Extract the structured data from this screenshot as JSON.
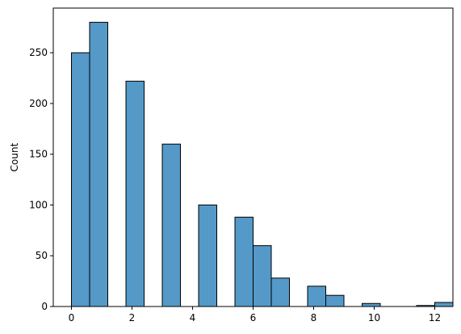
{
  "chart_data": {
    "type": "bar",
    "xlabel": "",
    "ylabel": "Count",
    "xlim": [
      -0.6,
      12.6
    ],
    "ylim": [
      0,
      294
    ],
    "xticks": [
      0,
      2,
      4,
      6,
      8,
      10,
      12
    ],
    "yticks": [
      0,
      50,
      100,
      150,
      200,
      250
    ],
    "bar_color": "#5499c7",
    "edge_color": "#000000",
    "bins": [
      {
        "x0": 0.0,
        "x1": 0.6,
        "value": 250
      },
      {
        "x0": 0.6,
        "x1": 1.2,
        "value": 280
      },
      {
        "x0": 1.8,
        "x1": 2.4,
        "value": 222
      },
      {
        "x0": 3.0,
        "x1": 3.6,
        "value": 160
      },
      {
        "x0": 4.2,
        "x1": 4.8,
        "value": 100
      },
      {
        "x0": 5.4,
        "x1": 6.0,
        "value": 88
      },
      {
        "x0": 6.0,
        "x1": 6.6,
        "value": 60
      },
      {
        "x0": 6.6,
        "x1": 7.2,
        "value": 28
      },
      {
        "x0": 7.8,
        "x1": 8.4,
        "value": 20
      },
      {
        "x0": 8.4,
        "x1": 9.0,
        "value": 11
      },
      {
        "x0": 9.6,
        "x1": 10.2,
        "value": 3
      },
      {
        "x0": 11.4,
        "x1": 12.0,
        "value": 1
      },
      {
        "x0": 12.0,
        "x1": 12.6,
        "value": 4
      }
    ]
  }
}
